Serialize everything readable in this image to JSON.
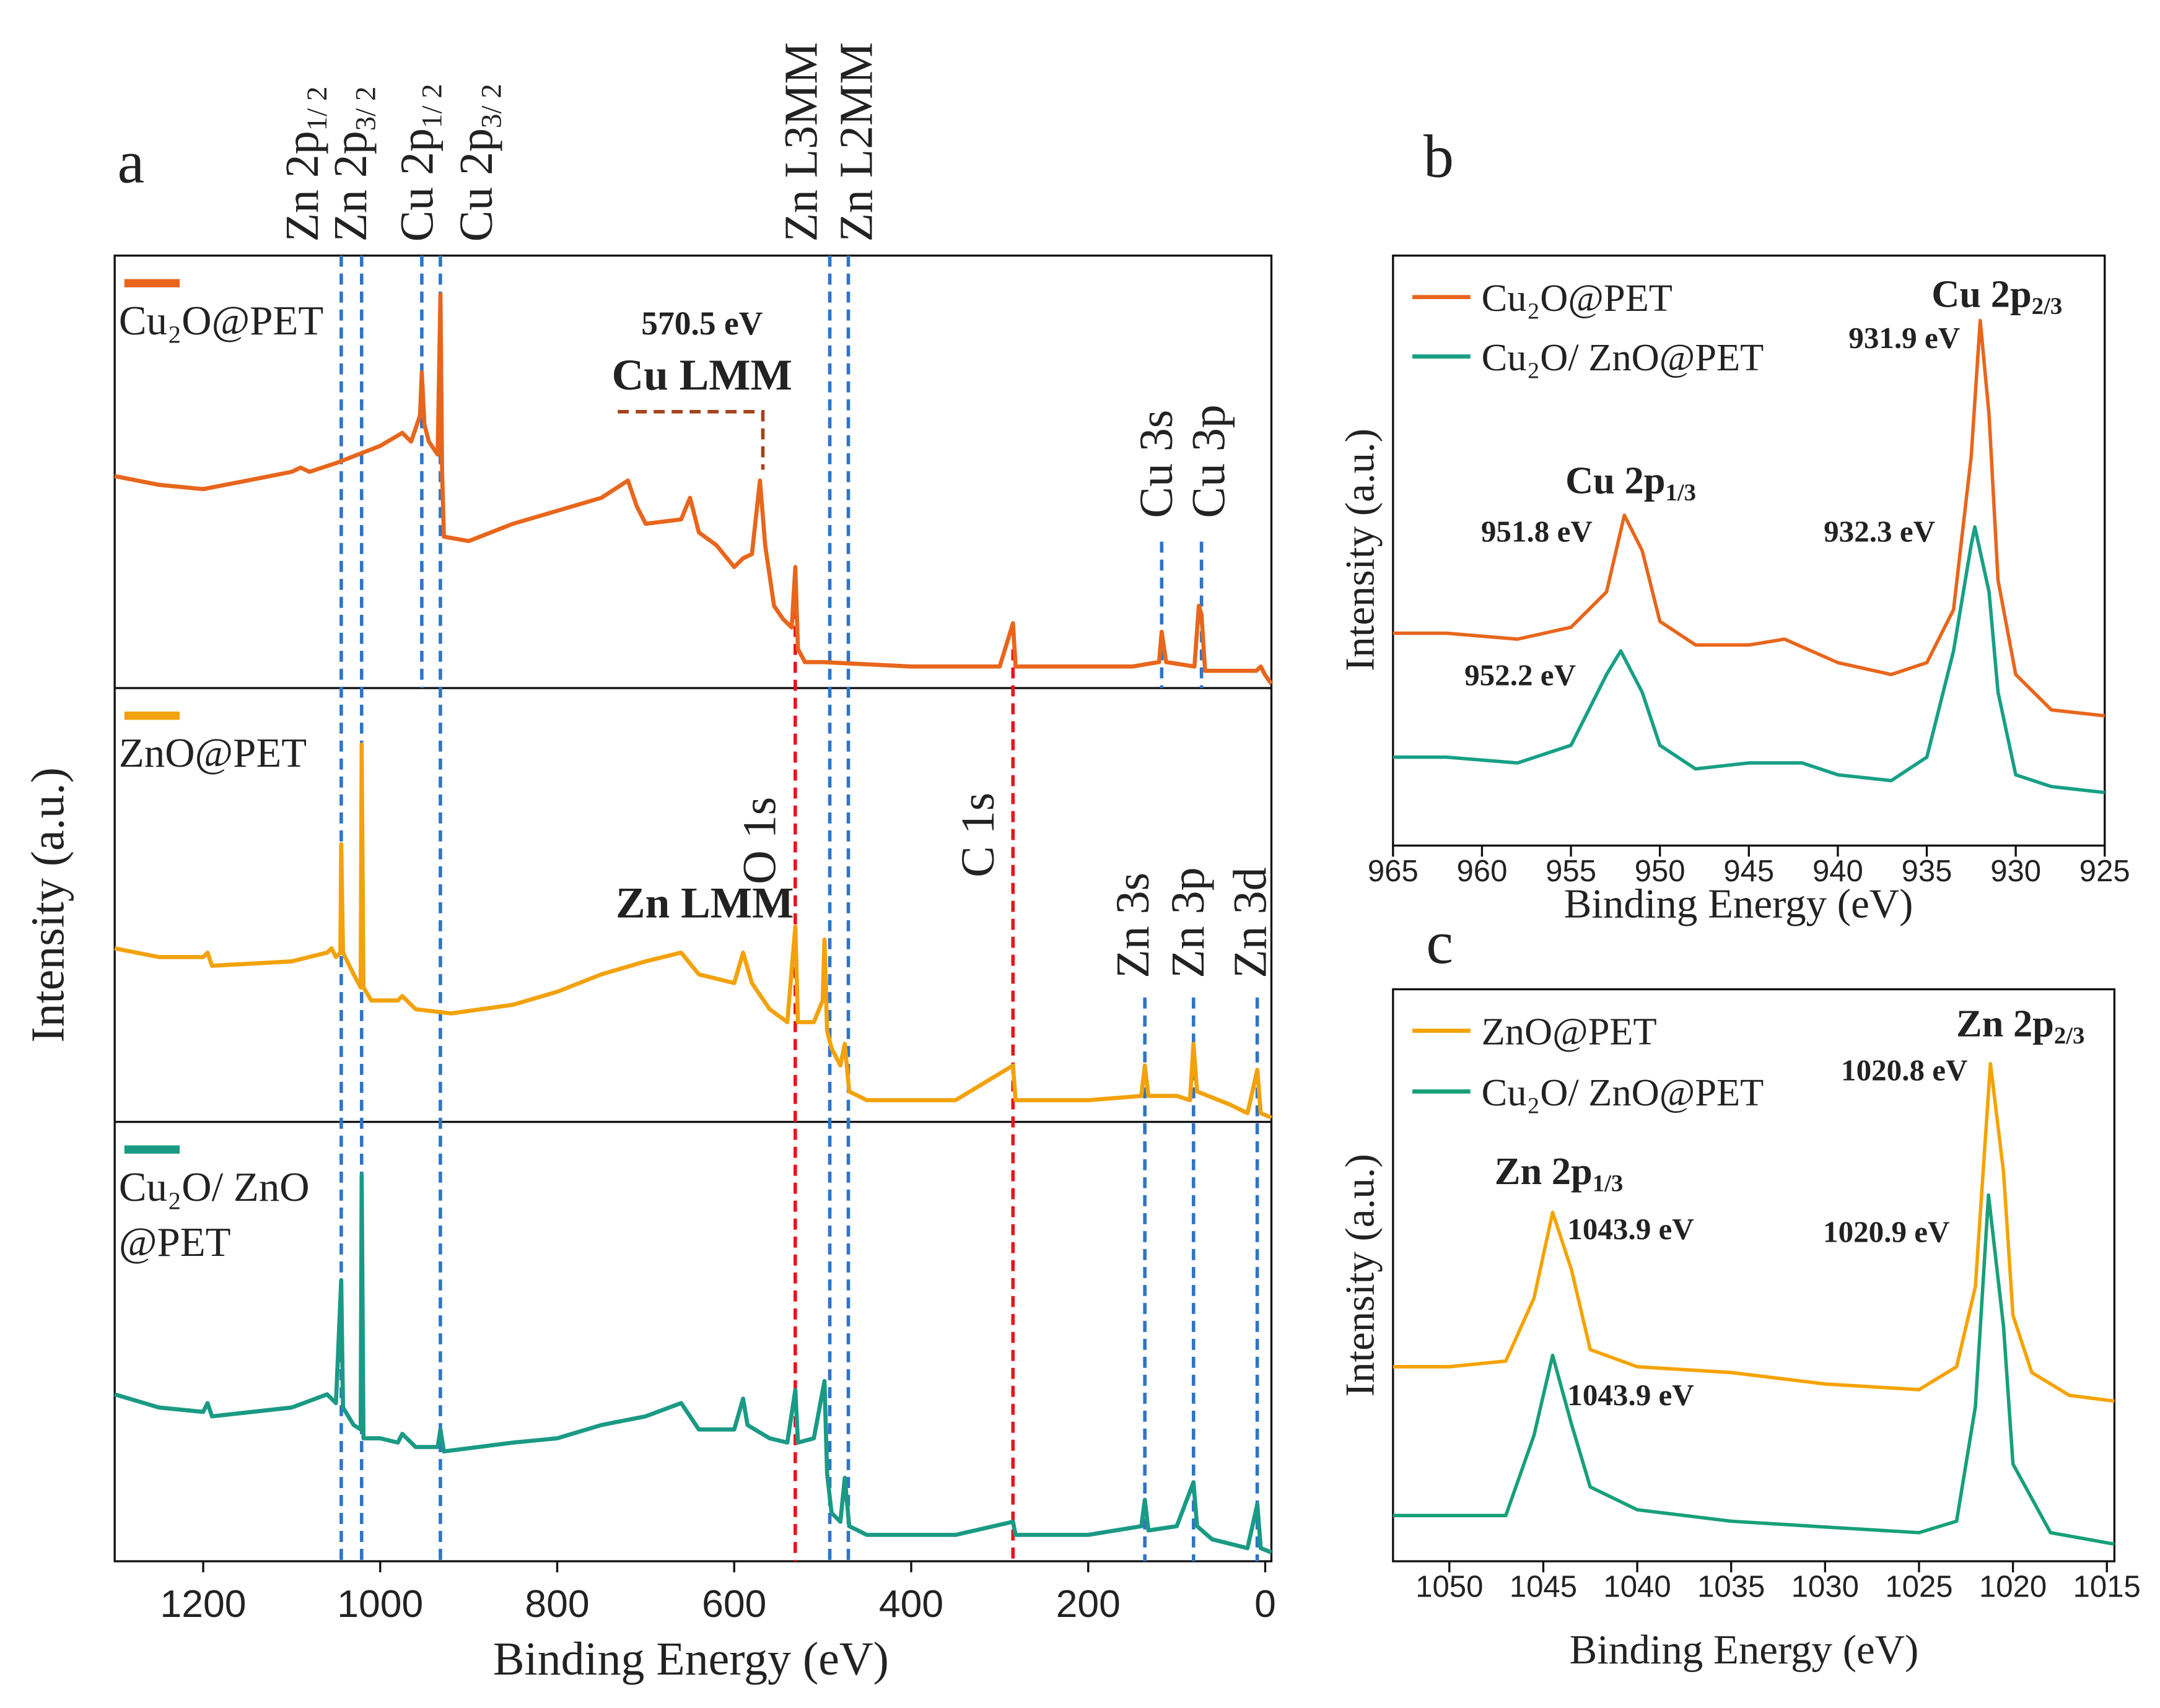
{
  "chart_data": [
    {
      "type": "line",
      "panel_label": "a",
      "xlabel": "Binding Energy (eV)",
      "ylabel": "Intensity (a.u.)",
      "xlim": [
        1300,
        -7
      ],
      "xticks": [
        1200,
        1000,
        800,
        600,
        400,
        200,
        0
      ],
      "series": [
        {
          "name": "Cu₂O@PET",
          "color": "#e8661c",
          "ylim": [
            0,
            100
          ],
          "x": [
            1300,
            1250,
            1200,
            1150,
            1100,
            1090,
            1080,
            1050,
            1000,
            975,
            965,
            955,
            953,
            950,
            945,
            935,
            932,
            930,
            928,
            900,
            850,
            800,
            750,
            720,
            710,
            700,
            660,
            650,
            640,
            620,
            600,
            590,
            580,
            571,
            565,
            555,
            545,
            535,
            531,
            528,
            520,
            500,
            400,
            300,
            285,
            282,
            200,
            150,
            120,
            117,
            112,
            80,
            75,
            72,
            68,
            30,
            10,
            5,
            0,
            -7
          ],
          "values": [
            49,
            47,
            46,
            48,
            50,
            51,
            50,
            52,
            56,
            59,
            57,
            63,
            73,
            61,
            57,
            54,
            91,
            50,
            35,
            34,
            38,
            41,
            44,
            48,
            42,
            38,
            39,
            44,
            36,
            33,
            28,
            30,
            31,
            48,
            33,
            19,
            16,
            14,
            28,
            9,
            6,
            6,
            5,
            5,
            15,
            5,
            5,
            5,
            6,
            13,
            6,
            5,
            19,
            17,
            4,
            4,
            4,
            5,
            3,
            1
          ]
        },
        {
          "name": "ZnO@PET",
          "color": "#f2a20c",
          "ylim": [
            0,
            100
          ],
          "x": [
            1300,
            1250,
            1200,
            1195,
            1190,
            1100,
            1060,
            1055,
            1050,
            1045,
            1044,
            1042,
            1030,
            1022,
            1021,
            1019,
            1010,
            980,
            975,
            960,
            920,
            850,
            800,
            750,
            700,
            660,
            640,
            600,
            590,
            580,
            560,
            540,
            531,
            528,
            510,
            500,
            498,
            495,
            490,
            480,
            475,
            470,
            450,
            350,
            285,
            282,
            200,
            140,
            136,
            132,
            100,
            85,
            81,
            77,
            40,
            20,
            9,
            5,
            -7
          ],
          "values": [
            40,
            38,
            38,
            39,
            36,
            37,
            39,
            40,
            38,
            39,
            64,
            39,
            34,
            31,
            87,
            31,
            28,
            28,
            29,
            26,
            25,
            27,
            30,
            34,
            37,
            39,
            34,
            32,
            39,
            32,
            26,
            23,
            45,
            23,
            23,
            28,
            42,
            21,
            17,
            13,
            18,
            7,
            5,
            5,
            13,
            5,
            5,
            6,
            13,
            6,
            6,
            5,
            18,
            7,
            4,
            2,
            12,
            2,
            1
          ]
        },
        {
          "name": "Cu₂O/ ZnO @PET",
          "color": "#1a9a84",
          "ylim": [
            0,
            100
          ],
          "x": [
            1300,
            1250,
            1200,
            1195,
            1190,
            1100,
            1060,
            1050,
            1044,
            1042,
            1030,
            1022,
            1021,
            1019,
            1000,
            980,
            975,
            960,
            935,
            932,
            928,
            850,
            800,
            750,
            700,
            660,
            640,
            600,
            590,
            585,
            560,
            540,
            531,
            528,
            510,
            498,
            495,
            490,
            480,
            475,
            470,
            450,
            350,
            285,
            282,
            200,
            140,
            136,
            132,
            100,
            81,
            77,
            60,
            20,
            9,
            5,
            -7
          ],
          "values": [
            38,
            35,
            34,
            36,
            33,
            35,
            38,
            36,
            64,
            35,
            31,
            30,
            88,
            28,
            28,
            27,
            29,
            26,
            26,
            30,
            25,
            27,
            28,
            31,
            33,
            36,
            30,
            30,
            37,
            31,
            28,
            27,
            39,
            27,
            28,
            41,
            20,
            11,
            9,
            19,
            8,
            6,
            6,
            9,
            6,
            6,
            8,
            14,
            7,
            8,
            18,
            8,
            5,
            3,
            13,
            3,
            2
          ]
        }
      ],
      "peak_lines": [
        {
          "text": "Zn 2p",
          "sub": "1/ 2",
          "x": 1044,
          "color": "#cf9f12",
          "line_color": "#2f74c8"
        },
        {
          "text": "Zn 2p",
          "sub": "3/ 2",
          "x": 1021,
          "color": "#cf9f12",
          "line_color": "#2f74c8"
        },
        {
          "text": "Cu 2p",
          "sub": "1/ 2",
          "x": 953,
          "color": "#e35a14",
          "line_color": "#2f74c8"
        },
        {
          "text": "Cu 2p",
          "sub": "3/ 2",
          "x": 932,
          "color": "#e35a14",
          "line_color": "#2f74c8"
        },
        {
          "text": "Zn L3MM",
          "x": 492,
          "color": "#cf9f12",
          "line_color": "#2f74c8"
        },
        {
          "text": "Zn L2MM",
          "x": 471,
          "color": "#cf9f12",
          "line_color": "#2f74c8"
        },
        {
          "text": "Cu 3s",
          "x": 117,
          "color": "#e35a14",
          "line_color": "#2f74c8"
        },
        {
          "text": "Cu 3p",
          "x": 72,
          "color": "#e35a14",
          "line_color": "#2f74c8"
        },
        {
          "text": "O 1s",
          "x": 531,
          "color": "#e8141a",
          "line_color": "#e8141a"
        },
        {
          "text": "C 1s",
          "x": 285,
          "color": "#e8141a",
          "line_color": "#e8141a"
        },
        {
          "text": "Zn 3s",
          "x": 136,
          "color": "#cf9f12",
          "line_color": "#2f74c8"
        },
        {
          "text": "Zn 3p",
          "x": 81,
          "color": "#cf9f12",
          "line_color": "#2f74c8"
        },
        {
          "text": "Zn 3d",
          "x": 9,
          "color": "#cf9f12",
          "line_color": "#2f74c8"
        }
      ],
      "annotations": [
        {
          "text": "570.5 eV",
          "color": "#a3421a"
        },
        {
          "text": "Cu LMM",
          "color": "#e35a14"
        },
        {
          "text": "Zn LMM",
          "color": "#d9a012"
        }
      ]
    },
    {
      "type": "line",
      "panel_label": "b",
      "xlabel": "Binding Energy (eV)",
      "ylabel": "Intensity (a.u.)",
      "xlim": [
        965,
        925
      ],
      "xticks": [
        965,
        960,
        955,
        950,
        945,
        940,
        935,
        930,
        925
      ],
      "ylim": [
        0,
        100
      ],
      "series": [
        {
          "name": "Cu₂O@PET",
          "color": "#e8661c",
          "x": [
            965,
            962,
            958,
            955,
            953,
            952,
            951,
            950,
            948,
            945,
            943,
            940,
            937,
            935,
            933.5,
            932.5,
            932,
            931.5,
            931,
            930,
            928,
            925
          ],
          "values": [
            36,
            36,
            35,
            37,
            43,
            56,
            50,
            38,
            34,
            34,
            35,
            31,
            29,
            31,
            40,
            66,
            89,
            73,
            45,
            29,
            23,
            22
          ]
        },
        {
          "name": "Cu₂O/ ZnO@PET",
          "color": "#17a085",
          "x": [
            965,
            962,
            958,
            955,
            953,
            952.2,
            951,
            950,
            948,
            945,
            942,
            940,
            937,
            935,
            933.5,
            932.5,
            932.3,
            931.5,
            931,
            930,
            928,
            925
          ],
          "values": [
            15,
            15,
            14,
            17,
            29,
            33,
            26,
            17,
            13,
            14,
            14,
            12,
            11,
            15,
            33,
            51,
            54,
            43,
            26,
            12,
            10,
            9
          ]
        }
      ],
      "annotations": [
        {
          "text": "Cu 2p",
          "sub": "2/3",
          "color": "#111"
        },
        {
          "text": "931.9 eV",
          "color": "#e8661c"
        },
        {
          "text": "Cu 2p",
          "sub": "1/3",
          "color": "#111"
        },
        {
          "text": "951.8 eV",
          "color": "#e8661c"
        },
        {
          "text": "932.3 eV",
          "color": "#17a085"
        },
        {
          "text": "952.2 eV",
          "color": "#17a085"
        }
      ]
    },
    {
      "type": "line",
      "panel_label": "c",
      "xlabel": "Binding Energy (eV)",
      "ylabel": "Intensity (a.u.)",
      "xlim": [
        1053,
        1014.6
      ],
      "xticks": [
        1050,
        1045,
        1040,
        1035,
        1030,
        1025,
        1020,
        1015
      ],
      "ylim": [
        0,
        100
      ],
      "series": [
        {
          "name": "ZnO@PET",
          "color": "#f5a300",
          "x": [
            1053,
            1050,
            1047,
            1045.5,
            1044.5,
            1043.5,
            1042.5,
            1040,
            1035,
            1030,
            1025,
            1023,
            1022,
            1021.2,
            1020.5,
            1020,
            1019,
            1017,
            1014.6
          ],
          "values": [
            34,
            34,
            35,
            46,
            61,
            51,
            37,
            34,
            33,
            31,
            30,
            34,
            48,
            87,
            68,
            43,
            33,
            29,
            28
          ]
        },
        {
          "name": "Cu₂O/ ZnO@PET",
          "color": "#17a07a",
          "x": [
            1053,
            1050,
            1047,
            1045.5,
            1044.5,
            1043.5,
            1042.5,
            1040,
            1035,
            1030,
            1025,
            1023,
            1022,
            1021.3,
            1020.5,
            1020,
            1018,
            1014.6
          ],
          "values": [
            8,
            8,
            8,
            22,
            36,
            24,
            13,
            9,
            7,
            6,
            5,
            7,
            27,
            64,
            41,
            17,
            5,
            3
          ]
        }
      ],
      "annotations": [
        {
          "text": "Zn 2p",
          "sub": "2/3",
          "color": "#111"
        },
        {
          "text": "1020.8 eV",
          "color": "#d9a012"
        },
        {
          "text": "Zn 2p",
          "sub": "1/3",
          "color": "#111"
        },
        {
          "text": "1043.9 eV",
          "color": "#d9a012"
        },
        {
          "text": "1020.9 eV",
          "color": "#17a07a"
        },
        {
          "text": "1043.9 eV",
          "color": "#17a07a"
        }
      ]
    }
  ]
}
